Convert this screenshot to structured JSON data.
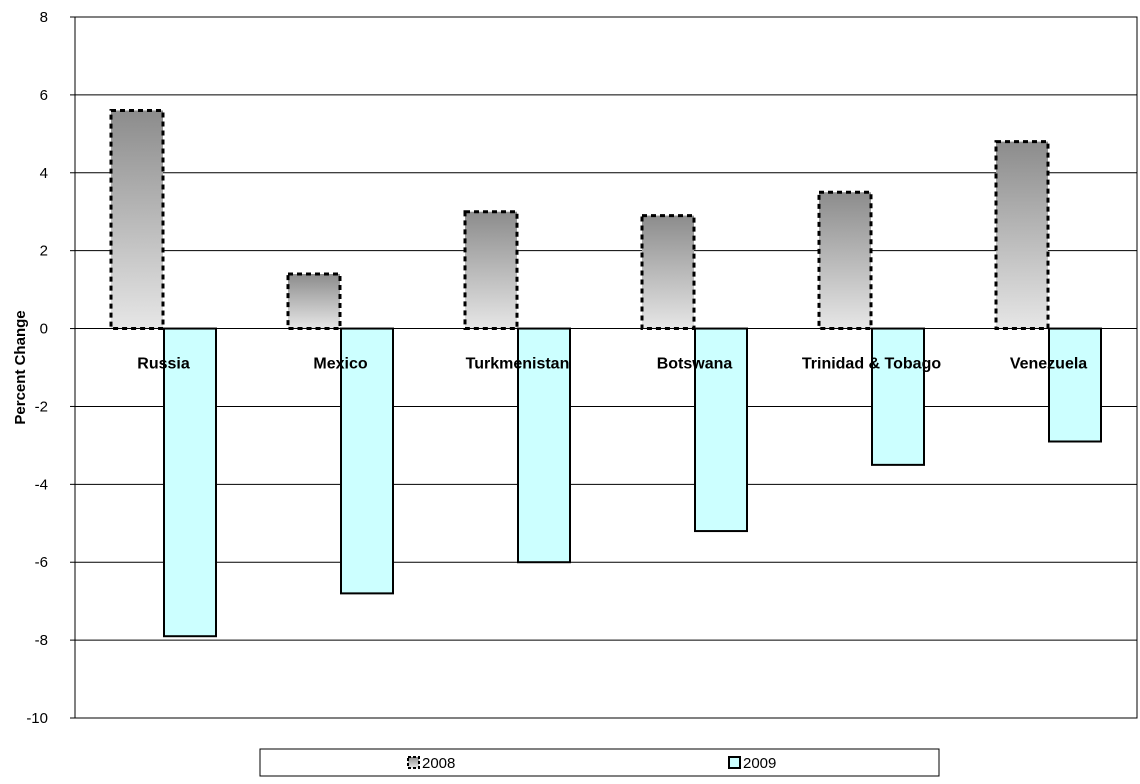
{
  "chart_data": {
    "type": "bar",
    "title": "",
    "xlabel": "",
    "ylabel": "Percent Change",
    "ylim": [
      -10,
      8
    ],
    "yticks": [
      8,
      6,
      4,
      2,
      0,
      -2,
      -4,
      -6,
      -8,
      -10
    ],
    "grid": true,
    "legend_position": "bottom",
    "categories": [
      "Russia",
      "Mexico",
      "Turkmenistan",
      "Botswana",
      "Trinidad & Tobago",
      "Venezuela"
    ],
    "series": [
      {
        "name": "2008",
        "values": [
          5.6,
          1.4,
          3.0,
          2.9,
          3.5,
          4.8
        ],
        "fill_top": "#8c8c8c",
        "fill_bottom": "#e6e6e6",
        "stroke": "#000000",
        "stroke_style": "dashed"
      },
      {
        "name": "2009",
        "values": [
          -7.9,
          -6.8,
          -6.0,
          -5.2,
          -3.5,
          -2.9
        ],
        "fill": "#ccffff",
        "stroke": "#000000",
        "stroke_style": "solid"
      }
    ]
  }
}
